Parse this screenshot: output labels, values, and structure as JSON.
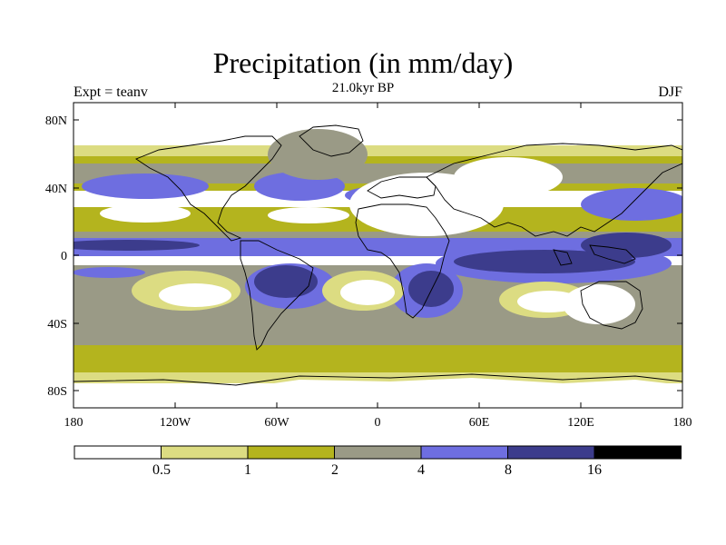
{
  "title": "Precipitation (in mm/day)",
  "subtitle": "21.0kyr BP",
  "experiment_label": "Expt = teanv",
  "season_label": "DJF",
  "axes": {
    "lat_labels": [
      "80N",
      "40N",
      "0",
      "40S",
      "80S"
    ],
    "lon_labels": [
      "180",
      "120W",
      "60W",
      "0",
      "60E",
      "120E",
      "180"
    ]
  },
  "colorbar": {
    "thresholds": [
      "0.5",
      "1",
      "2",
      "4",
      "8",
      "16"
    ],
    "colors": [
      "#ffffff",
      "#dcdc82",
      "#b4b41e",
      "#9a9a86",
      "#6e6ee0",
      "#3c3c8c",
      "#000000"
    ]
  }
}
